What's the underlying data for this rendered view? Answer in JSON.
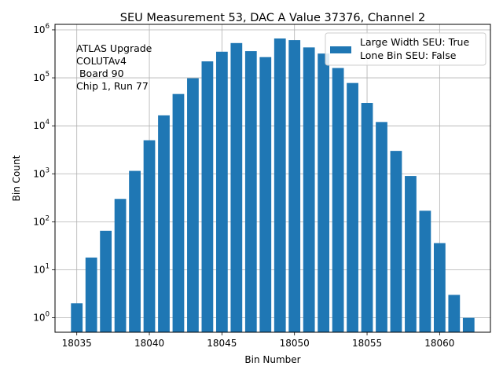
{
  "chart_data": {
    "type": "bar",
    "title": "SEU Measurement 53, DAC A Value 37376, Channel 2",
    "xlabel": "Bin Number",
    "ylabel": "Bin Count",
    "yscale": "log",
    "xlim": [
      18033.5,
      18063.5
    ],
    "ylim": [
      0.5,
      1300000
    ],
    "grid": true,
    "bar_color": "#1f77b4",
    "x_ticks": [
      18035,
      18040,
      18045,
      18050,
      18055,
      18060
    ],
    "x_tick_labels": [
      "18035",
      "18040",
      "18045",
      "18050",
      "18055",
      "18060"
    ],
    "y_ticks": [
      1,
      10,
      100,
      1000,
      10000,
      100000,
      1000000
    ],
    "y_tick_labels": [
      {
        "base": "10",
        "exp": "0"
      },
      {
        "base": "10",
        "exp": "1"
      },
      {
        "base": "10",
        "exp": "2"
      },
      {
        "base": "10",
        "exp": "3"
      },
      {
        "base": "10",
        "exp": "4"
      },
      {
        "base": "10",
        "exp": "5"
      },
      {
        "base": "10",
        "exp": "6"
      }
    ],
    "x": [
      18035,
      18036,
      18037,
      18038,
      18039,
      18040,
      18041,
      18042,
      18043,
      18044,
      18045,
      18046,
      18047,
      18048,
      18049,
      18050,
      18051,
      18052,
      18053,
      18054,
      18055,
      18056,
      18057,
      18058,
      18059,
      18060,
      18061,
      18062
    ],
    "values": [
      2,
      18,
      65,
      300,
      1150,
      5000,
      16500,
      46000,
      98000,
      220000,
      350000,
      530000,
      360000,
      270000,
      660000,
      610000,
      430000,
      320000,
      160000,
      78000,
      30000,
      12000,
      3000,
      900,
      170,
      36,
      3,
      1
    ],
    "legend": {
      "location": "upper right",
      "entries": [
        "Large Width SEU: True",
        "Lone Bin SEU: False"
      ]
    },
    "annotation": {
      "lines": [
        "ATLAS Upgrade",
        "COLUTAv4",
        " Board 90",
        "Chip 1, Run 77"
      ]
    }
  }
}
